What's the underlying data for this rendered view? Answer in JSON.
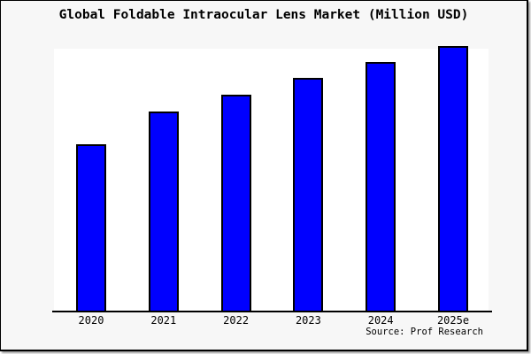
{
  "chart_data": {
    "type": "bar",
    "title": "Global Foldable Intraocular Lens Market (Million USD)",
    "categories": [
      "2020",
      "2021",
      "2022",
      "2023",
      "2024",
      "2025e"
    ],
    "relative_heights": [
      0.629,
      0.753,
      0.816,
      0.88,
      0.94,
      1.0
    ],
    "xlabel": "",
    "ylabel": "",
    "y_axis_tick_labels": "none",
    "grid": false,
    "legend": "none",
    "bar_color": "#0000ff",
    "bar_edge_color": "#000000",
    "plot_background": "#ffffff",
    "panel_background": "#f7f7f7",
    "source": "Source: Prof Research"
  }
}
